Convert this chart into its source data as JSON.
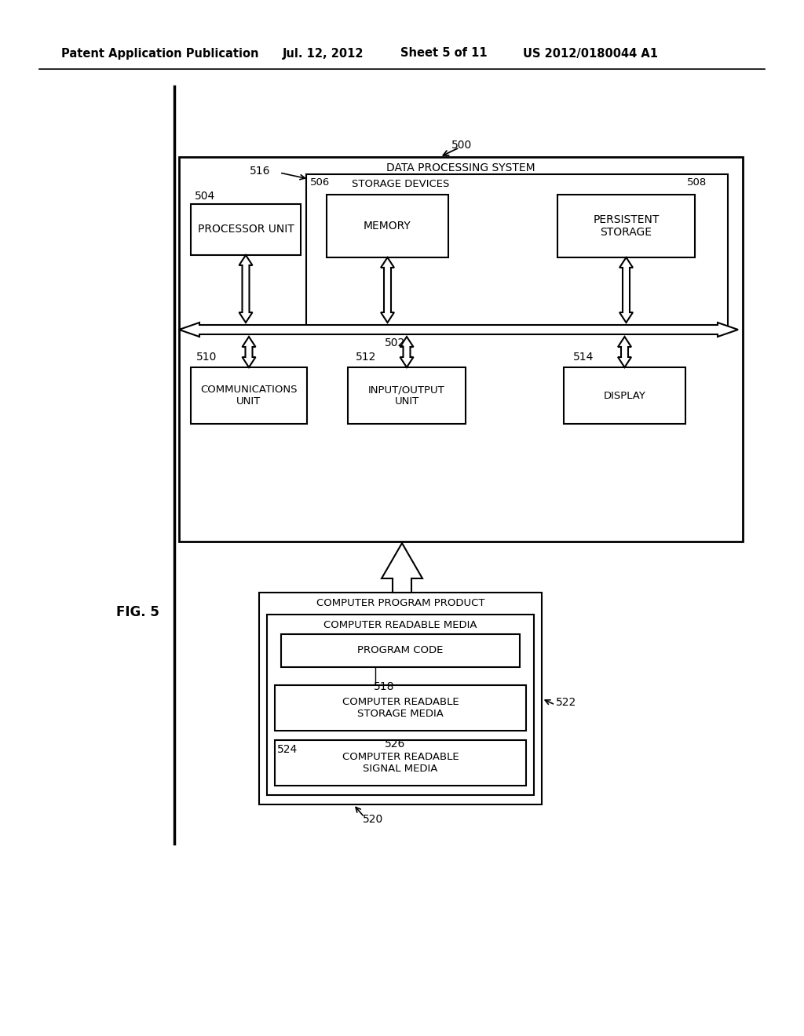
{
  "bg_color": "#ffffff",
  "header_text": "Patent Application Publication",
  "header_date": "Jul. 12, 2012",
  "header_sheet": "Sheet 5 of 11",
  "header_patent": "US 2012/0180044 A1",
  "fig_label": "FIG. 5",
  "label_500": "500",
  "label_504": "504",
  "label_516": "516",
  "label_506": "506",
  "label_508": "508",
  "label_502": "502",
  "label_510": "510",
  "label_512": "512",
  "label_514": "514",
  "label_518": "518",
  "label_520": "520",
  "label_522": "522",
  "label_524": "524",
  "label_526": "526",
  "text_dps": "DATA PROCESSING SYSTEM",
  "text_storage": "STORAGE DEVICES",
  "text_processor": "PROCESSOR UNIT",
  "text_memory": "MEMORY",
  "text_persistent": "PERSISTENT\nSTORAGE",
  "text_comm": "COMMUNICATIONS\nUNIT",
  "text_io": "INPUT/OUTPUT\nUNIT",
  "text_display": "DISPLAY",
  "text_cpp": "COMPUTER PROGRAM PRODUCT",
  "text_crm": "COMPUTER READABLE MEDIA",
  "text_pc": "PROGRAM CODE",
  "text_crsm": "COMPUTER READABLE\nSTORAGE MEDIA",
  "text_crsig": "COMPUTER READABLE\nSIGNAL MEDIA"
}
